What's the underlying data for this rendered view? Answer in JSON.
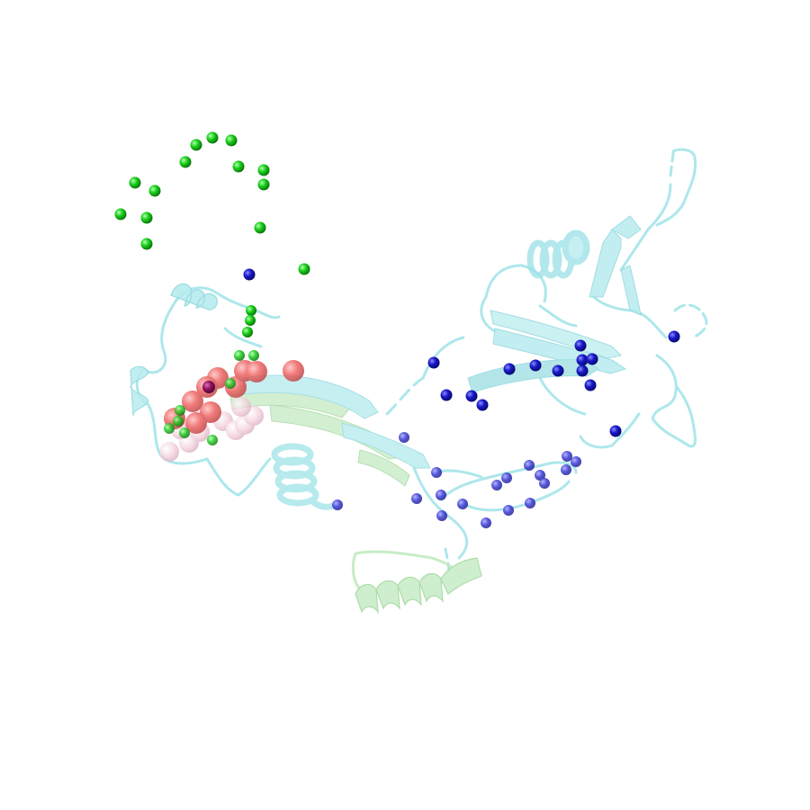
{
  "scene": {
    "description_type": "protein-structure-rendering",
    "background": "#ffffff"
  },
  "colors": {
    "cartoon_primary": "#b8ecef",
    "cartoon_primary_stroke": "#93dde3",
    "cartoon_secondary": "#cdeecb",
    "cartoon_secondary_stroke": "#aedcac",
    "sphere_red": "#ef6a6a",
    "sphere_pink": "#efc8d6",
    "sphere_green": "#1ed21e",
    "sphere_blue": "#1a1ab8",
    "sphere_purple": "#8a0f5a"
  }
}
